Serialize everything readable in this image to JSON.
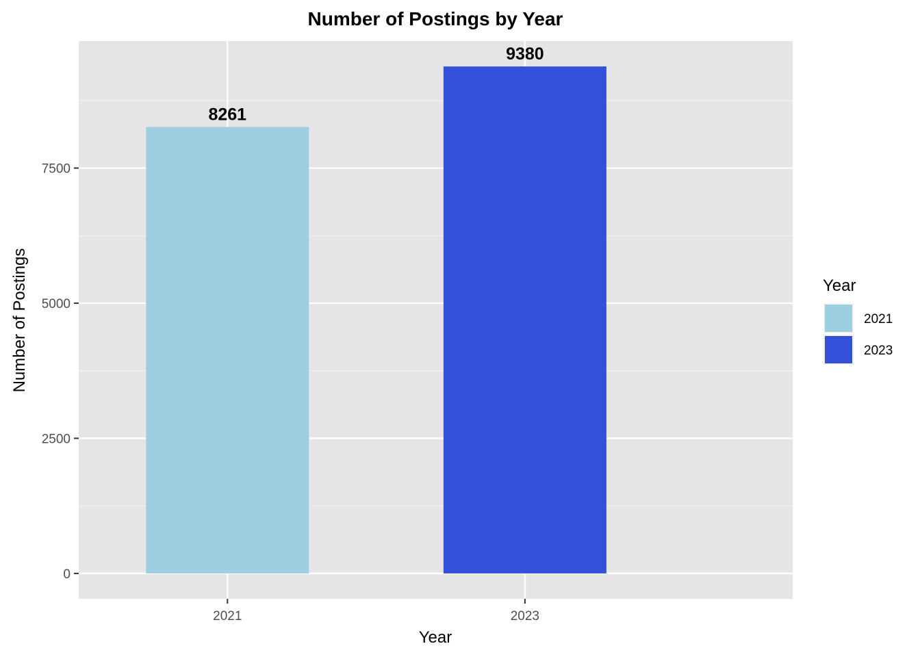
{
  "chart_data": {
    "type": "bar",
    "title": "Number of Postings by Year",
    "xlabel": "Year",
    "ylabel": "Number of Postings",
    "categories": [
      "2021",
      "2023"
    ],
    "values": [
      8261,
      9380
    ],
    "data_labels": [
      "8261",
      "9380"
    ],
    "colors": [
      "#9ecfe0",
      "#3450d9"
    ],
    "ylim": [
      -470,
      9850
    ],
    "yticks": [
      0,
      2500,
      5000,
      7500
    ],
    "ytick_labels": [
      "0",
      "2500",
      "5000",
      "7500"
    ],
    "grid": true,
    "panel_background": "#e5e5e5",
    "legend": {
      "title": "Year",
      "placement": "right",
      "entries": [
        "2021",
        "2023"
      ]
    }
  }
}
